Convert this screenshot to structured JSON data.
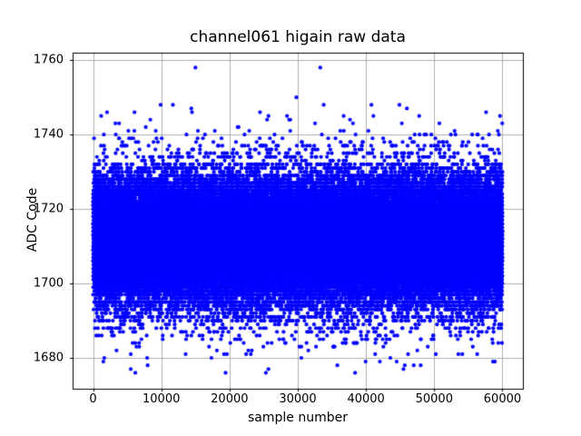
{
  "chart_data": {
    "type": "scatter",
    "title": "channel061 higain raw data",
    "xlabel": "sample number",
    "ylabel": "ADC Code",
    "marker_color": "#0000ff",
    "marker_px": 2.1,
    "grid_color": "#b0b0b0",
    "axis_color": "#000000",
    "grid": true,
    "x_ticks": [
      0,
      10000,
      20000,
      30000,
      40000,
      50000,
      60000
    ],
    "y_ticks": [
      1680,
      1700,
      1720,
      1740,
      1760
    ],
    "xlim": [
      -3000,
      63000
    ],
    "ylim": [
      1671.9,
      1762.1
    ],
    "n_samples": 60000,
    "x_range": [
      0,
      59999
    ],
    "noise_band": {
      "mean": 1711.5,
      "core_sigma": 8.5,
      "core_weight": 0.975,
      "tail_sigma": 15,
      "clip_min": 1676,
      "clip_max": 1746,
      "solid_band": [
        1690,
        1733
      ],
      "full_extent": [
        1676,
        1758
      ]
    },
    "sparse_codes": {
      "1733": 0.35,
      "1730": 0.6,
      "1696": 0.65,
      "1692": 0.5,
      "1689": 0.7
    },
    "outliers": [
      [
        15000,
        1758
      ],
      [
        33300,
        1758
      ],
      [
        29800,
        1750
      ],
      [
        33800,
        1748
      ],
      [
        40800,
        1748
      ],
      [
        9900,
        1748
      ],
      [
        11700,
        1748
      ],
      [
        44900,
        1748
      ],
      [
        14400,
        1747
      ],
      [
        46000,
        1747
      ],
      [
        2050,
        1746
      ],
      [
        14500,
        1746
      ],
      [
        57600,
        1746
      ],
      [
        47800,
        1745
      ],
      [
        38400,
        1676
      ],
      [
        25700,
        1677
      ],
      [
        8000,
        1678
      ],
      [
        35800,
        1678
      ],
      [
        47000,
        1678
      ],
      [
        44500,
        1679
      ]
    ]
  }
}
